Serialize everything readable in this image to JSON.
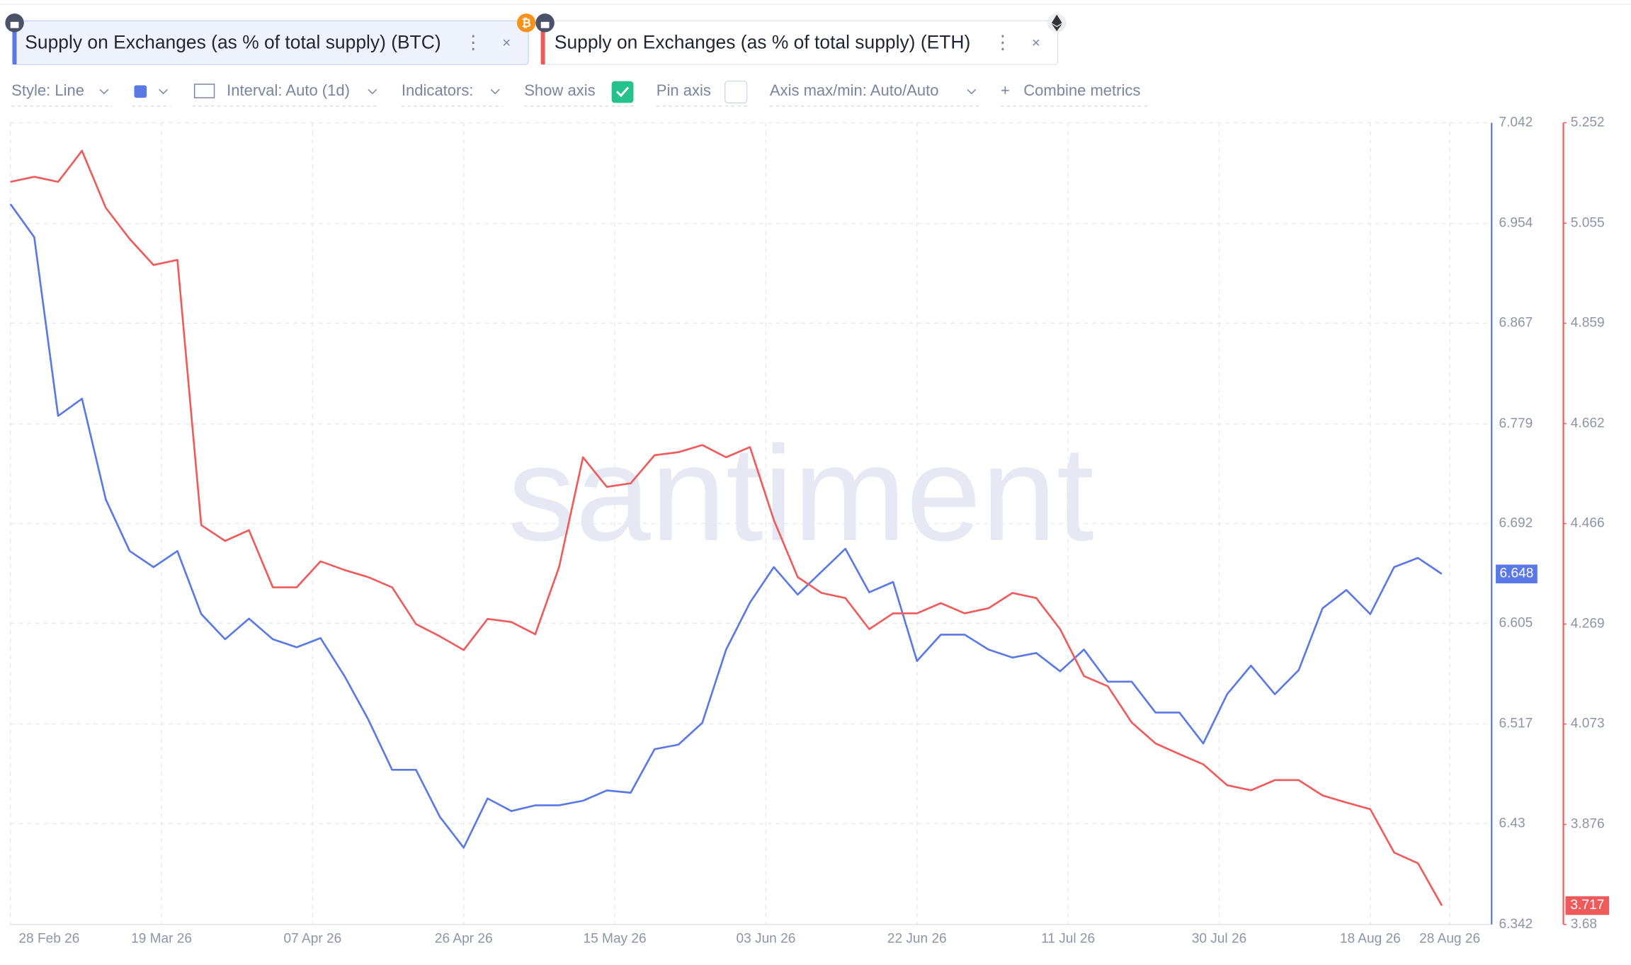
{
  "tabs_note_free": null,
  "toolbar": {
    "style": "Style: Line",
    "interval": "Interval: Auto (1d)",
    "indicators": "Indicators:",
    "show_axis": "Show axis",
    "pin_axis": "Pin axis",
    "axis_range": "Axis max/min: Auto/Auto",
    "combine": "Combine metrics"
  },
  "chart_data": {
    "type": "line",
    "watermark": "santiment",
    "xlim": [
      "2026-02-28",
      "2026-09-02"
    ],
    "x": [
      "2026-02-28",
      "2026-03-03",
      "2026-03-06",
      "2026-03-09",
      "2026-03-12",
      "2026-03-15",
      "2026-03-18",
      "2026-03-21",
      "2026-03-24",
      "2026-03-27",
      "2026-03-30",
      "2026-04-02",
      "2026-04-05",
      "2026-04-08",
      "2026-04-11",
      "2026-04-14",
      "2026-04-17",
      "2026-04-20",
      "2026-04-23",
      "2026-04-26",
      "2026-04-29",
      "2026-05-02",
      "2026-05-05",
      "2026-05-08",
      "2026-05-11",
      "2026-05-14",
      "2026-05-17",
      "2026-05-20",
      "2026-05-23",
      "2026-05-26",
      "2026-05-29",
      "2026-06-01",
      "2026-06-04",
      "2026-06-07",
      "2026-06-10",
      "2026-06-13",
      "2026-06-16",
      "2026-06-19",
      "2026-06-22",
      "2026-06-25",
      "2026-06-28",
      "2026-07-01",
      "2026-07-04",
      "2026-07-07",
      "2026-07-10",
      "2026-07-13",
      "2026-07-16",
      "2026-07-19",
      "2026-07-22",
      "2026-07-25",
      "2026-07-28",
      "2026-07-31",
      "2026-08-03",
      "2026-08-06",
      "2026-08-09",
      "2026-08-12",
      "2026-08-15",
      "2026-08-18",
      "2026-08-21",
      "2026-08-24",
      "2026-08-27"
    ],
    "xticks": [
      {
        "value": "2026-02-28",
        "label": "28 Feb 26"
      },
      {
        "value": "2026-03-19",
        "label": "19 Mar 26"
      },
      {
        "value": "2026-04-07",
        "label": "07 Apr 26"
      },
      {
        "value": "2026-04-26",
        "label": "26 Apr 26"
      },
      {
        "value": "2026-05-15",
        "label": "15 May 26"
      },
      {
        "value": "2026-06-03",
        "label": "03 Jun 26"
      },
      {
        "value": "2026-06-22",
        "label": "22 Jun 26"
      },
      {
        "value": "2026-07-11",
        "label": "11 Jul 26"
      },
      {
        "value": "2026-07-30",
        "label": "30 Jul 26"
      },
      {
        "value": "2026-08-18",
        "label": "18 Aug 26"
      },
      {
        "value": "2026-08-28",
        "label": "28 Aug 26"
      }
    ],
    "ylim": [
      6.342,
      7.042
    ],
    "yticks": [
      6.342,
      6.43,
      6.517,
      6.605,
      6.692,
      6.779,
      6.867,
      6.954,
      7.042
    ],
    "y2lim": [
      3.68,
      5.252
    ],
    "y2ticks": [
      3.68,
      3.876,
      4.073,
      4.269,
      4.466,
      4.662,
      4.859,
      5.055,
      5.252
    ],
    "grid": true,
    "series": [
      {
        "name": "Supply on Exchanges (as % of total supply) (BTC)",
        "color": "#5a78e6",
        "values": [
          6.971,
          6.942,
          6.786,
          6.801,
          6.713,
          6.668,
          6.654,
          6.668,
          6.613,
          6.591,
          6.609,
          6.591,
          6.584,
          6.592,
          6.559,
          6.521,
          6.477,
          6.477,
          6.436,
          6.409,
          6.452,
          6.441,
          6.446,
          6.446,
          6.45,
          6.459,
          6.457,
          6.495,
          6.499,
          6.518,
          6.582,
          6.623,
          6.654,
          6.63,
          6.65,
          6.67,
          6.632,
          6.641,
          6.572,
          6.595,
          6.595,
          6.582,
          6.575,
          6.579,
          6.563,
          6.582,
          6.554,
          6.554,
          6.527,
          6.527,
          6.5,
          6.543,
          6.568,
          6.543,
          6.564,
          6.618,
          6.634,
          6.613,
          6.654,
          6.662,
          6.648
        ]
      },
      {
        "name": "Supply on Exchanges (as % of total supply) (ETH)",
        "color": "#ef5b5b",
        "axis": "y2",
        "values": [
          5.136,
          5.146,
          5.136,
          5.197,
          5.085,
          5.024,
          4.973,
          4.983,
          4.463,
          4.432,
          4.453,
          4.341,
          4.341,
          4.392,
          4.375,
          4.361,
          4.341,
          4.269,
          4.245,
          4.218,
          4.279,
          4.273,
          4.249,
          4.381,
          4.596,
          4.538,
          4.545,
          4.6,
          4.606,
          4.62,
          4.596,
          4.616,
          4.473,
          4.361,
          4.33,
          4.32,
          4.259,
          4.29,
          4.29,
          4.31,
          4.29,
          4.3,
          4.33,
          4.32,
          4.259,
          4.167,
          4.147,
          4.076,
          4.035,
          4.014,
          3.994,
          3.953,
          3.943,
          3.963,
          3.963,
          3.933,
          3.919,
          3.906,
          3.821,
          3.8,
          3.717
        ]
      }
    ]
  }
}
